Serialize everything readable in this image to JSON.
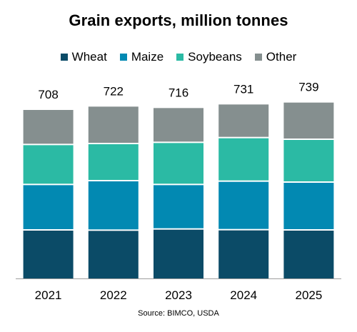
{
  "chart_data": {
    "type": "bar",
    "stacked": true,
    "title": "Grain exports, million tonnes",
    "categories": [
      "2021",
      "2022",
      "2023",
      "2024",
      "2025"
    ],
    "totals": [
      708,
      722,
      716,
      731,
      739
    ],
    "series": [
      {
        "name": "Wheat",
        "color": "#0b4b67",
        "values": [
          201,
          200,
          205,
          202,
          201
        ]
      },
      {
        "name": "Maize",
        "color": "#0289b2",
        "values": [
          191,
          208,
          187,
          204,
          201
        ]
      },
      {
        "name": "Soybeans",
        "color": "#2bbaa4",
        "values": [
          168,
          156,
          177,
          183,
          180
        ]
      },
      {
        "name": "Other",
        "color": "#858f8f",
        "values": [
          148,
          158,
          147,
          142,
          157
        ]
      }
    ],
    "ylim": [
      0,
      750
    ],
    "legend_position": "top-center",
    "grid": false
  },
  "source": "Source: BIMCO, USDA"
}
